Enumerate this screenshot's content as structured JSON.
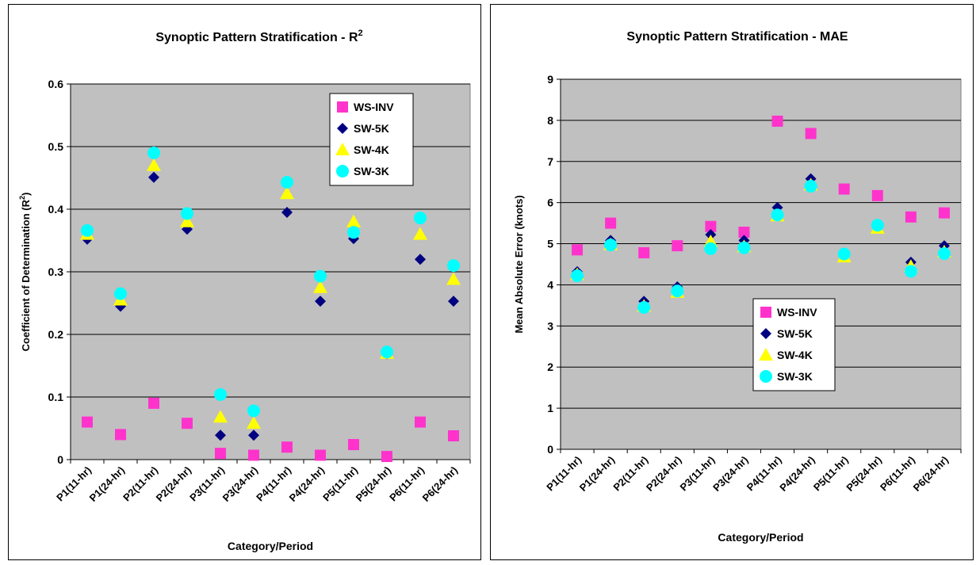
{
  "chart_data": [
    {
      "type": "scatter",
      "title": "Synoptic Pattern Stratification - R",
      "title_sup": "2",
      "xlabel": "Category/Period",
      "ylabel": "Coefficient of Determination (R",
      "ylabel_sup": "2",
      "ylabel_end": ")",
      "ylim": [
        0,
        0.6
      ],
      "yticks": [
        "0",
        "0.1",
        "0.2",
        "0.3",
        "0.4",
        "0.5",
        "0.6"
      ],
      "grid": true,
      "legend_position": "top-right",
      "categories": [
        "P1(11-hr)",
        "P1(24-hr)",
        "P2(11-hr)",
        "P2(24-hr)",
        "P3(11-hr)",
        "P3(24-hr)",
        "P4(11-hr)",
        "P4(24-hr)",
        "P5(11-hr)",
        "P5(24-hr)",
        "P6(11-hr)",
        "P6(24-hr)"
      ],
      "series": [
        {
          "name": "WS-INV",
          "marker": "square",
          "color": "#ff33cc",
          "values": [
            0.06,
            0.04,
            0.09,
            0.058,
            0.01,
            0.007,
            0.02,
            0.007,
            0.024,
            0.005,
            0.06,
            0.038
          ]
        },
        {
          "name": "SW-5K",
          "marker": "diamond",
          "color": "#000080",
          "values": [
            0.352,
            0.245,
            0.451,
            0.368,
            0.039,
            0.039,
            0.395,
            0.253,
            0.353,
            0.169,
            0.32,
            0.253
          ]
        },
        {
          "name": "SW-4K",
          "marker": "triangle",
          "color": "#ffff00",
          "values": [
            0.36,
            0.255,
            0.47,
            0.38,
            0.068,
            0.058,
            0.425,
            0.275,
            0.38,
            0.17,
            0.36,
            0.288
          ]
        },
        {
          "name": "SW-3K",
          "marker": "circle",
          "color": "#00ffff",
          "values": [
            0.366,
            0.265,
            0.49,
            0.393,
            0.104,
            0.078,
            0.443,
            0.293,
            0.363,
            0.172,
            0.386,
            0.31
          ]
        }
      ]
    },
    {
      "type": "scatter",
      "title": "Synoptic Pattern Stratification - MAE",
      "xlabel": "Category/Period",
      "ylabel": "Mean Absolute Error (knots)",
      "ylim": [
        0,
        9
      ],
      "yticks": [
        "0",
        "1",
        "2",
        "3",
        "4",
        "5",
        "6",
        "7",
        "8",
        "9"
      ],
      "grid": true,
      "legend_position": "bottom-center",
      "categories": [
        "P1(11-hr)",
        "P1(24-hr)",
        "P2(11-hr)",
        "P2(24-hr)",
        "P3(11-hr)",
        "P3(24-hr)",
        "P4(11-hr)",
        "P4(24-hr)",
        "P5(11-hr)",
        "P5(24-hr)",
        "P6(11-hr)",
        "P6(24-hr)"
      ],
      "series": [
        {
          "name": "WS-INV",
          "marker": "square",
          "color": "#ff33cc",
          "values": [
            4.85,
            5.5,
            4.78,
            4.95,
            5.42,
            5.28,
            7.98,
            7.68,
            6.33,
            6.17,
            5.65,
            5.75
          ]
        },
        {
          "name": "SW-5K",
          "marker": "diamond",
          "color": "#000080",
          "values": [
            4.32,
            5.08,
            3.6,
            3.95,
            5.22,
            5.08,
            5.88,
            6.58,
            4.7,
            5.4,
            4.55,
            4.95
          ]
        },
        {
          "name": "SW-4K",
          "marker": "triangle",
          "color": "#ffff00",
          "values": [
            4.25,
            4.98,
            3.48,
            3.82,
            5.05,
            4.93,
            5.68,
            6.43,
            4.68,
            5.38,
            4.45,
            4.8
          ]
        },
        {
          "name": "SW-3K",
          "marker": "circle",
          "color": "#00ffff",
          "values": [
            4.22,
            4.97,
            3.45,
            3.85,
            4.88,
            4.9,
            5.7,
            6.4,
            4.75,
            5.45,
            4.33,
            4.76
          ]
        }
      ]
    }
  ]
}
